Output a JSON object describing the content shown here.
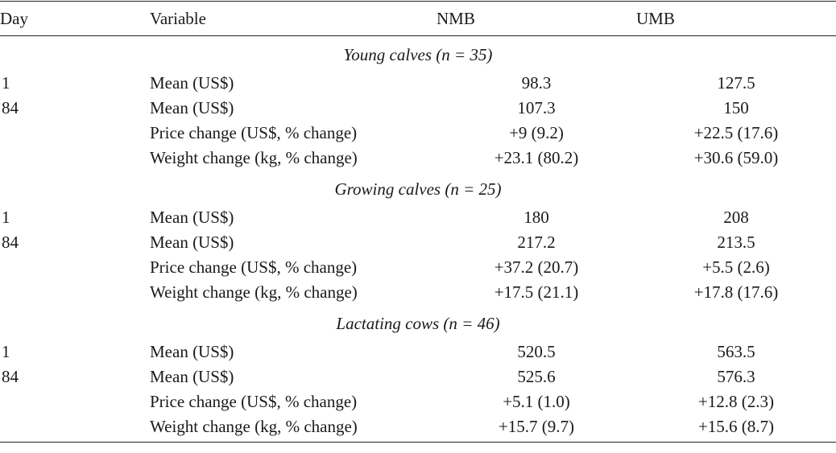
{
  "table": {
    "headers": {
      "day": "Day",
      "variable": "Variable",
      "nmb": "NMB",
      "umb": "UMB"
    },
    "groups": [
      {
        "title": "Young calves (n = 35)",
        "rows": [
          {
            "day": "1",
            "variable": "Mean (US$)",
            "nmb": "98.3",
            "umb": "127.5"
          },
          {
            "day": "84",
            "variable": "Mean (US$)",
            "nmb": "107.3",
            "umb": "150"
          },
          {
            "day": "",
            "variable": "Price change (US$, % change)",
            "nmb": "+9 (9.2)",
            "umb": "+22.5 (17.6)"
          },
          {
            "day": "",
            "variable": "Weight change (kg, % change)",
            "nmb": "+23.1 (80.2)",
            "umb": "+30.6 (59.0)"
          }
        ]
      },
      {
        "title": "Growing calves (n = 25)",
        "rows": [
          {
            "day": "1",
            "variable": "Mean (US$)",
            "nmb": "180",
            "umb": "208"
          },
          {
            "day": "84",
            "variable": "Mean (US$)",
            "nmb": "217.2",
            "umb": "213.5"
          },
          {
            "day": "",
            "variable": "Price change (US$, % change)",
            "nmb": "+37.2 (20.7)",
            "umb": "+5.5 (2.6)"
          },
          {
            "day": "",
            "variable": "Weight change (kg, % change)",
            "nmb": "+17.5 (21.1)",
            "umb": "+17.8 (17.6)"
          }
        ]
      },
      {
        "title": "Lactating cows (n = 46)",
        "rows": [
          {
            "day": "1",
            "variable": "Mean (US$)",
            "nmb": "520.5",
            "umb": "563.5"
          },
          {
            "day": "84",
            "variable": "Mean (US$)",
            "nmb": "525.6",
            "umb": "576.3"
          },
          {
            "day": "",
            "variable": "Price change (US$, % change)",
            "nmb": "+5.1 (1.0)",
            "umb": "+12.8 (2.3)"
          },
          {
            "day": "",
            "variable": "Weight change (kg, % change)",
            "nmb": "+15.7 (9.7)",
            "umb": "+15.6 (8.7)"
          }
        ]
      }
    ]
  }
}
